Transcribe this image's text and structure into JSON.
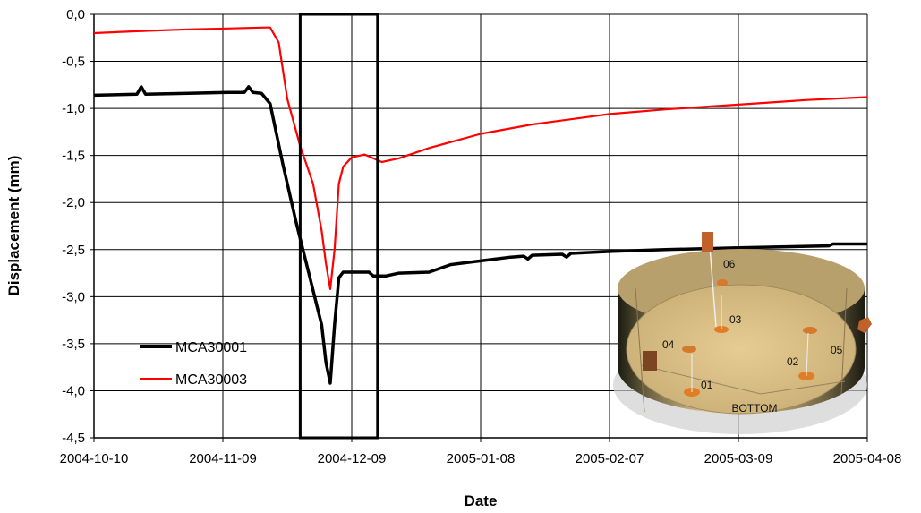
{
  "chart_data": {
    "type": "line",
    "xlabel": "Date",
    "ylabel": "Displacement (mm)",
    "xlim": [
      "2004-10-10",
      "2005-04-08"
    ],
    "ylim": [
      -4.5,
      0.0
    ],
    "grid": true,
    "x_ticks": [
      "2004-10-10",
      "2004-11-09",
      "2004-12-09",
      "2005-01-08",
      "2005-02-07",
      "2005-03-09",
      "2005-04-08"
    ],
    "y_ticks": [
      "0,0",
      "-0,5",
      "-1,0",
      "-1,5",
      "-2,0",
      "-2,5",
      "-3,0",
      "-3,5",
      "-4,0",
      "-4,5"
    ],
    "legend": {
      "placement": "left-lower",
      "entries": [
        {
          "name": "MCA30001",
          "color": "#000000"
        },
        {
          "name": "MCA30003",
          "color": "#ff0000"
        }
      ]
    },
    "highlight_box": {
      "x_start": "2004-11-27",
      "x_end": "2004-12-15",
      "color": "#000000"
    },
    "series": [
      {
        "name": "MCA30001",
        "color": "#000000",
        "points": [
          [
            "2004-10-10",
            -0.86
          ],
          [
            "2004-10-20",
            -0.85
          ],
          [
            "2004-10-21",
            -0.77
          ],
          [
            "2004-10-22",
            -0.85
          ],
          [
            "2004-11-01",
            -0.84
          ],
          [
            "2004-11-10",
            -0.83
          ],
          [
            "2004-11-14",
            -0.83
          ],
          [
            "2004-11-15",
            -0.77
          ],
          [
            "2004-11-16",
            -0.83
          ],
          [
            "2004-11-18",
            -0.84
          ],
          [
            "2004-11-20",
            -0.95
          ],
          [
            "2004-11-23",
            -1.6
          ],
          [
            "2004-11-26",
            -2.2
          ],
          [
            "2004-11-29",
            -2.75
          ],
          [
            "2004-12-02",
            -3.3
          ],
          [
            "2004-12-03",
            -3.7
          ],
          [
            "2004-12-04",
            -3.92
          ],
          [
            "2004-12-05",
            -3.3
          ],
          [
            "2004-12-06",
            -2.8
          ],
          [
            "2004-12-07",
            -2.74
          ],
          [
            "2004-12-13",
            -2.74
          ],
          [
            "2004-12-14",
            -2.78
          ],
          [
            "2004-12-17",
            -2.78
          ],
          [
            "2004-12-20",
            -2.75
          ],
          [
            "2004-12-27",
            -2.74
          ],
          [
            "2005-01-01",
            -2.66
          ],
          [
            "2005-01-08",
            -2.62
          ],
          [
            "2005-01-15",
            -2.58
          ],
          [
            "2005-01-18",
            -2.57
          ],
          [
            "2005-01-19",
            -2.6
          ],
          [
            "2005-01-20",
            -2.56
          ],
          [
            "2005-01-27",
            -2.55
          ],
          [
            "2005-01-28",
            -2.58
          ],
          [
            "2005-01-29",
            -2.54
          ],
          [
            "2005-02-07",
            -2.52
          ],
          [
            "2005-02-20",
            -2.5
          ],
          [
            "2005-03-09",
            -2.48
          ],
          [
            "2005-03-20",
            -2.47
          ],
          [
            "2005-03-30",
            -2.46
          ],
          [
            "2005-03-31",
            -2.44
          ],
          [
            "2005-04-08",
            -2.44
          ]
        ]
      },
      {
        "name": "MCA30003",
        "color": "#ff0000",
        "points": [
          [
            "2004-10-10",
            -0.2
          ],
          [
            "2004-10-20",
            -0.18
          ],
          [
            "2004-11-01",
            -0.16
          ],
          [
            "2004-11-10",
            -0.15
          ],
          [
            "2004-11-19",
            -0.14
          ],
          [
            "2004-11-20",
            -0.14
          ],
          [
            "2004-11-22",
            -0.3
          ],
          [
            "2004-11-24",
            -0.9
          ],
          [
            "2004-11-27",
            -1.4
          ],
          [
            "2004-11-30",
            -1.8
          ],
          [
            "2004-12-02",
            -2.3
          ],
          [
            "2004-12-03",
            -2.65
          ],
          [
            "2004-12-04",
            -2.92
          ],
          [
            "2004-12-05",
            -2.5
          ],
          [
            "2004-12-06",
            -1.8
          ],
          [
            "2004-12-07",
            -1.62
          ],
          [
            "2004-12-09",
            -1.52
          ],
          [
            "2004-12-12",
            -1.49
          ],
          [
            "2004-12-14",
            -1.53
          ],
          [
            "2004-12-16",
            -1.57
          ],
          [
            "2004-12-20",
            -1.53
          ],
          [
            "2004-12-27",
            -1.42
          ],
          [
            "2005-01-08",
            -1.27
          ],
          [
            "2005-01-20",
            -1.17
          ],
          [
            "2005-02-07",
            -1.06
          ],
          [
            "2005-02-20",
            -1.01
          ],
          [
            "2005-03-09",
            -0.96
          ],
          [
            "2005-03-25",
            -0.91
          ],
          [
            "2005-04-08",
            -0.88
          ]
        ]
      }
    ]
  },
  "inset": {
    "caption": "BOTTOM",
    "labels": [
      "06",
      "03",
      "04",
      "05",
      "02",
      "01"
    ]
  }
}
